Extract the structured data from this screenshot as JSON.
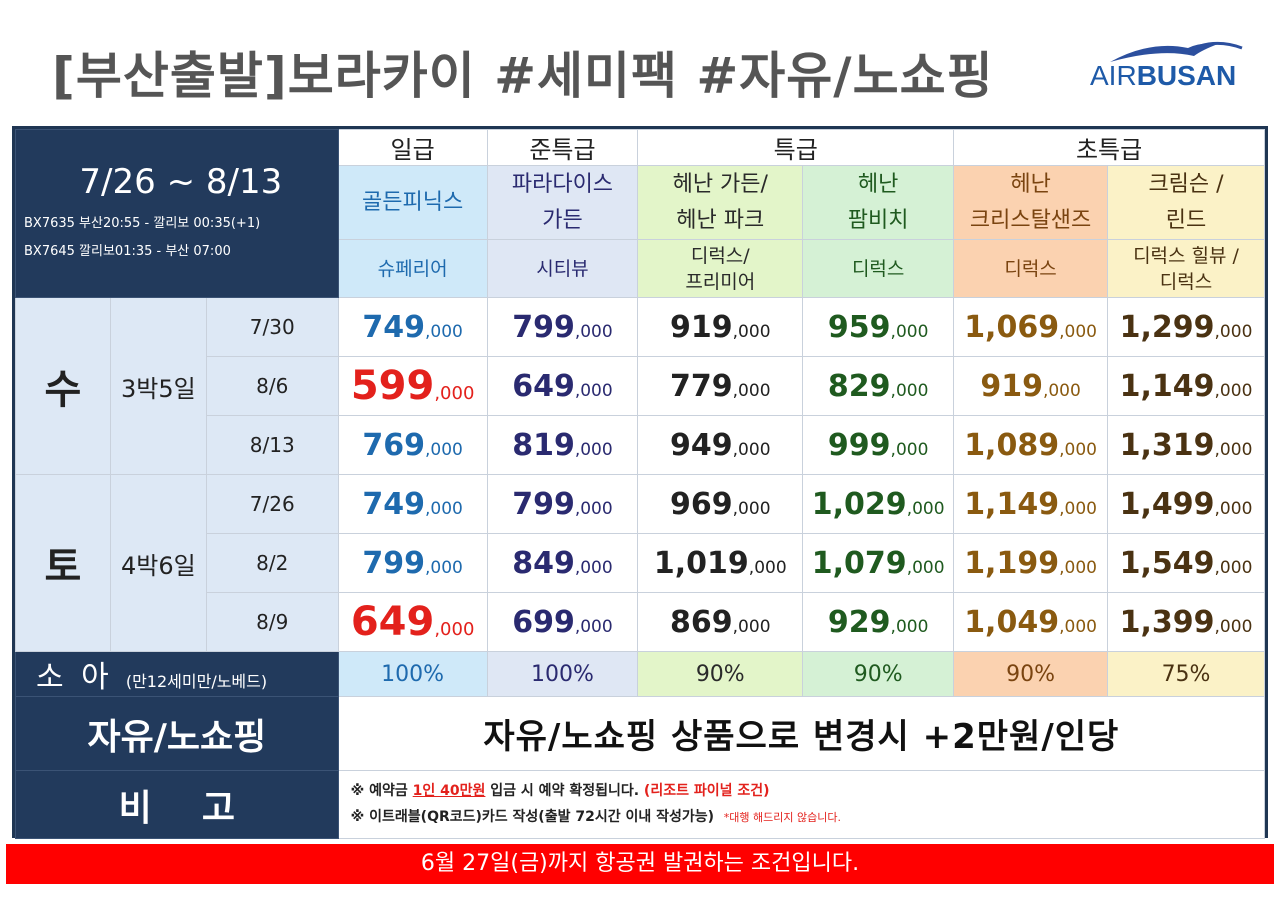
{
  "title": "[부산출발]보라카이  #세미팩  #자유/노쇼핑",
  "logo": {
    "air": "AIR",
    "busan": "BUSAN"
  },
  "header": {
    "period": "7/26 ~ 8/13",
    "flight1": "BX7635 부산20:55 - 깔리보 00:35(+1)",
    "flight2": "BX7645 깔리보01:35 - 부산 07:00",
    "tiers": [
      "일급",
      "준특급",
      "특급",
      "초특급"
    ],
    "hotels": [
      {
        "line1": "골든피닉스",
        "line2": ""
      },
      {
        "line1": "파라다이스",
        "line2": "가든"
      },
      {
        "line1": "헤난 가든/",
        "line2": "헤난 파크"
      },
      {
        "line1": "헤난",
        "line2": "팜비치"
      },
      {
        "line1": "헤난",
        "line2": "크리스탈샌즈"
      },
      {
        "line1": "크림슨 /",
        "line2": "린드"
      }
    ],
    "rooms": [
      {
        "line1": "슈페리어",
        "line2": ""
      },
      {
        "line1": "시티뷰",
        "line2": ""
      },
      {
        "line1": "디럭스/",
        "line2": "프리미어"
      },
      {
        "line1": "디럭스",
        "line2": ""
      },
      {
        "line1": "디럭스",
        "line2": ""
      },
      {
        "line1": "디럭스 힐뷰 /",
        "line2": "디럭스"
      }
    ]
  },
  "groups": [
    {
      "day": "수",
      "duration": "3박5일",
      "rows": [
        {
          "date": "7/30",
          "prices": [
            "749",
            "799",
            "919",
            "959",
            "1,069",
            "1,299"
          ]
        },
        {
          "date": "8/6",
          "prices": [
            "599",
            "649",
            "779",
            "829",
            "919",
            "1,149"
          ]
        },
        {
          "date": "8/13",
          "prices": [
            "769",
            "819",
            "949",
            "999",
            "1,089",
            "1,319"
          ]
        }
      ]
    },
    {
      "day": "토",
      "duration": "4박6일",
      "rows": [
        {
          "date": "7/26",
          "prices": [
            "749",
            "799",
            "969",
            "1,029",
            "1,149",
            "1,499"
          ]
        },
        {
          "date": "8/2",
          "prices": [
            "799",
            "849",
            "1,019",
            "1,079",
            "1,199",
            "1,549"
          ]
        },
        {
          "date": "8/9",
          "prices": [
            "649",
            "699",
            "869",
            "929",
            "1,049",
            "1,399"
          ]
        }
      ]
    }
  ],
  "price_suffix": ",000",
  "child": {
    "label": "소 아",
    "sub": "(만12세미만/노베드)",
    "values": [
      "100%",
      "100%",
      "90%",
      "90%",
      "90%",
      "75%"
    ]
  },
  "free": {
    "label": "자유/노쇼핑",
    "text": "자유/노쇼핑 상품으로 변경시 +2만원/인당"
  },
  "remarks": {
    "label": "비    고",
    "n1_a": "※ 예약금 ",
    "n1_b": "1인 40만원",
    "n1_c": " 입금 시 예약 확정됩니다. ",
    "n1_d": "(리조트 파이널 조건)",
    "n2_a": "※ 이트래블(QR코드)카드 작성(출발 72시간 이내 작성가능)  ",
    "n2_b": "*대행 해드리지 않습니다."
  },
  "bottom": "6월 27일(금)까지 항공권 발권하는 조건입니다.",
  "colors": {
    "header_bg": "#223a5c",
    "highlight_red": "#e3211c",
    "bottom_bar": "#ff0000"
  }
}
